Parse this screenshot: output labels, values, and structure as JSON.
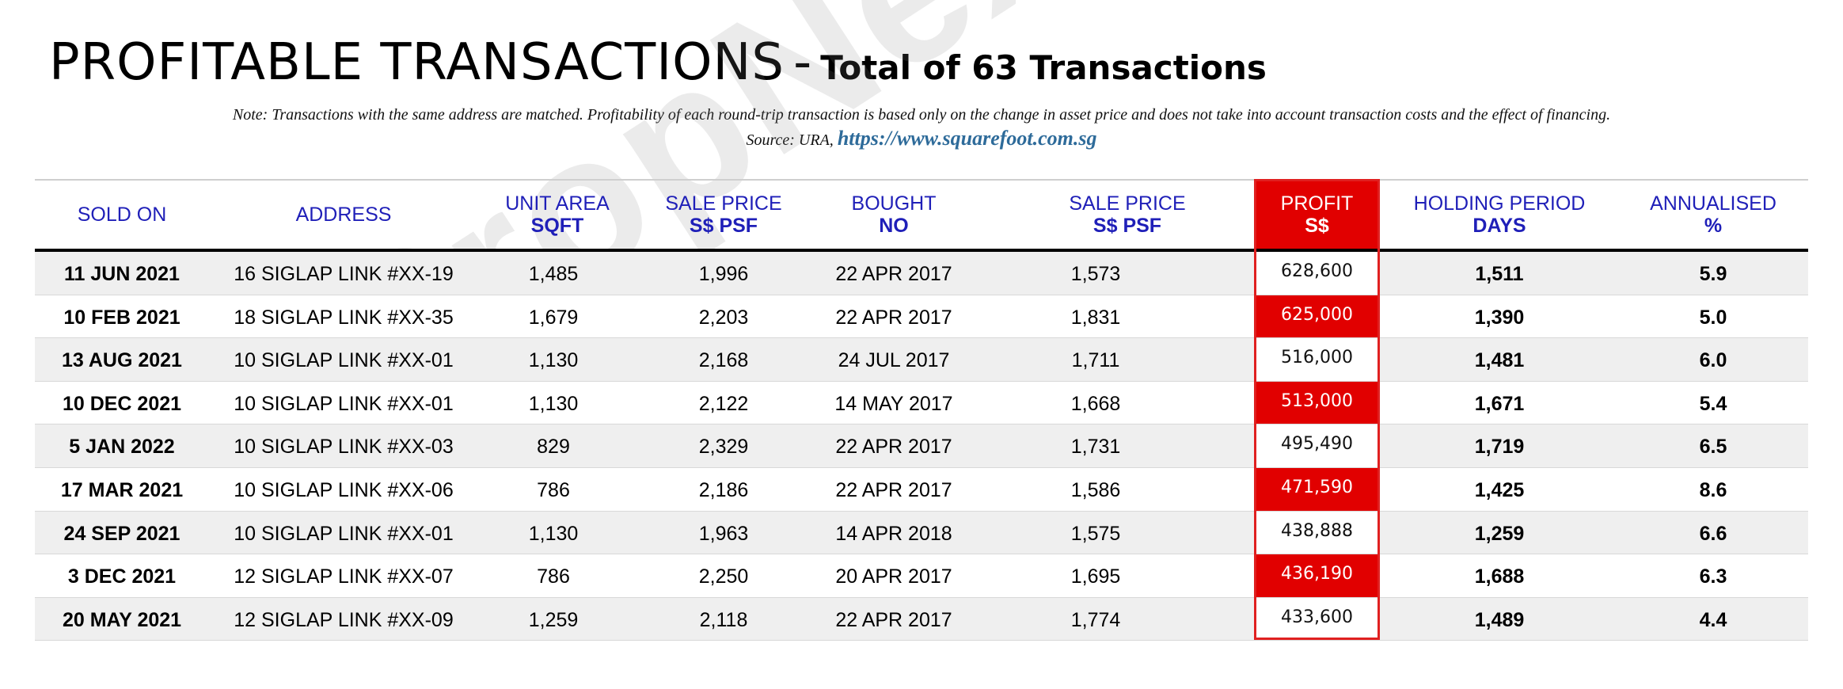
{
  "title": {
    "main": "PROFITABLE TRANSACTIONS",
    "sep": "-",
    "sub": "Total of 63 Transactions"
  },
  "note": "Note: Transactions with the same address are matched. Profitability of each round-trip transaction is based only on the change in asset price and does not take into account transaction costs and the effect of financing.",
  "source": {
    "label": "Source: URA,",
    "link": "https://www.squarefoot.com.sg"
  },
  "watermark": "PropNex",
  "columns": [
    {
      "l1": "SOLD ON",
      "l2": ""
    },
    {
      "l1": "ADDRESS",
      "l2": ""
    },
    {
      "l1": "UNIT AREA",
      "l2": "SQFT"
    },
    {
      "l1": "SALE PRICE",
      "l2": "S$ PSF"
    },
    {
      "l1": "BOUGHT",
      "l2": "NO"
    },
    {
      "l1": "SALE PRICE",
      "l2": "S$ PSF"
    },
    {
      "l1": "PROFIT",
      "l2": "S$"
    },
    {
      "l1": "HOLDING PERIOD",
      "l2": "DAYS"
    },
    {
      "l1": "ANNUALISED",
      "l2": "%"
    }
  ],
  "rows": [
    [
      "11 JUN 2021",
      "16 SIGLAP LINK #XX-19",
      "1,485",
      "1,996",
      "22 APR 2017",
      "1,573",
      "628,600",
      "1,511",
      "5.9"
    ],
    [
      "10 FEB 2021",
      "18 SIGLAP LINK #XX-35",
      "1,679",
      "2,203",
      "22 APR 2017",
      "1,831",
      "625,000",
      "1,390",
      "5.0"
    ],
    [
      "13 AUG 2021",
      "10 SIGLAP LINK #XX-01",
      "1,130",
      "2,168",
      "24 JUL 2017",
      "1,711",
      "516,000",
      "1,481",
      "6.0"
    ],
    [
      "10 DEC 2021",
      "10 SIGLAP LINK #XX-01",
      "1,130",
      "2,122",
      "14 MAY 2017",
      "1,668",
      "513,000",
      "1,671",
      "5.4"
    ],
    [
      "5 JAN 2022",
      "10 SIGLAP LINK #XX-03",
      "829",
      "2,329",
      "22 APR 2017",
      "1,731",
      "495,490",
      "1,719",
      "6.5"
    ],
    [
      "17 MAR 2021",
      "10 SIGLAP LINK #XX-06",
      "786",
      "2,186",
      "22 APR 2017",
      "1,586",
      "471,590",
      "1,425",
      "8.6"
    ],
    [
      "24 SEP 2021",
      "10 SIGLAP LINK #XX-01",
      "1,130",
      "1,963",
      "14 APR 2018",
      "1,575",
      "438,888",
      "1,259",
      "6.6"
    ],
    [
      "3 DEC 2021",
      "12 SIGLAP LINK #XX-07",
      "786",
      "2,250",
      "20 APR 2017",
      "1,695",
      "436,190",
      "1,688",
      "6.3"
    ],
    [
      "20 MAY 2021",
      "12 SIGLAP LINK #XX-09",
      "1,259",
      "2,118",
      "22 APR 2017",
      "1,774",
      "433,600",
      "1,489",
      "4.4"
    ]
  ],
  "colors": {
    "header_text": "#1f1fb8",
    "profit_red": "#e10000",
    "row_shade": "#efefef"
  }
}
